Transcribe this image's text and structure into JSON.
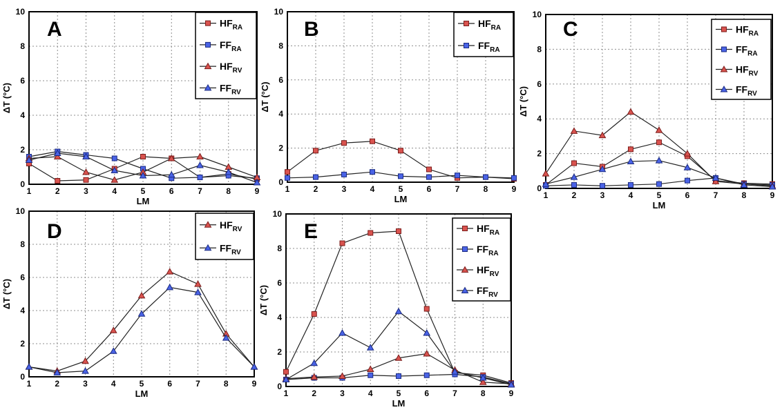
{
  "colors": {
    "red_fill": "#d9534f",
    "red_stroke": "#7a1c1a",
    "blue_fill": "#4a63e6",
    "blue_stroke": "#1a2a80",
    "grid": "#8c8c8c"
  },
  "chart_data": [
    {
      "id": "A",
      "type": "line",
      "panel_label": "A",
      "xlabel": "LM",
      "ylabel": "ΔT (°C)",
      "x": [
        1,
        2,
        3,
        4,
        5,
        6,
        7,
        8,
        9
      ],
      "xlim": [
        1,
        9
      ],
      "ylim": [
        0,
        10
      ],
      "yticks": [
        "0",
        "2",
        "4",
        "6",
        "8",
        "10"
      ],
      "xticks": [
        "1",
        "2",
        "3",
        "4",
        "5",
        "6",
        "7",
        "8",
        "9"
      ],
      "legend_position": "top-right",
      "series": [
        {
          "name": "HF",
          "sub": "RA",
          "marker": "square",
          "color": "red",
          "values": [
            1.2,
            0.2,
            0.25,
            0.9,
            1.6,
            1.5,
            0.4,
            0.6,
            0.3
          ]
        },
        {
          "name": "FF",
          "sub": "RA",
          "marker": "square",
          "color": "blue",
          "values": [
            1.6,
            1.9,
            1.7,
            1.5,
            0.9,
            0.35,
            0.4,
            0.5,
            0.35
          ]
        },
        {
          "name": "HF",
          "sub": "RV",
          "marker": "triangle",
          "color": "red",
          "values": [
            1.5,
            1.6,
            0.7,
            0.25,
            0.7,
            1.5,
            1.6,
            1.0,
            0.4
          ]
        },
        {
          "name": "FF",
          "sub": "RV",
          "marker": "triangle",
          "color": "blue",
          "values": [
            1.4,
            1.8,
            1.6,
            0.8,
            0.5,
            0.55,
            1.1,
            0.7,
            0.1
          ]
        }
      ]
    },
    {
      "id": "B",
      "type": "line",
      "panel_label": "B",
      "xlabel": "LM",
      "ylabel": "ΔT (°C)",
      "x": [
        1,
        2,
        3,
        4,
        5,
        6,
        7,
        8,
        9
      ],
      "xlim": [
        1,
        9
      ],
      "ylim": [
        0,
        10
      ],
      "yticks": [
        "0",
        "2",
        "4",
        "6",
        "8",
        "10"
      ],
      "xticks": [
        "1",
        "2",
        "3",
        "4",
        "5",
        "6",
        "7",
        "8",
        "9"
      ],
      "legend_position": "top-right",
      "series": [
        {
          "name": "HF",
          "sub": "RA",
          "marker": "square",
          "color": "red",
          "values": [
            0.6,
            1.85,
            2.3,
            2.4,
            1.85,
            0.75,
            0.25,
            0.3,
            0.2
          ]
        },
        {
          "name": "FF",
          "sub": "RA",
          "marker": "square",
          "color": "blue",
          "values": [
            0.25,
            0.3,
            0.45,
            0.6,
            0.35,
            0.3,
            0.4,
            0.3,
            0.25
          ]
        }
      ]
    },
    {
      "id": "C",
      "type": "line",
      "panel_label": "C",
      "xlabel": "LM",
      "ylabel": "ΔT (°C)",
      "x": [
        1,
        2,
        3,
        4,
        5,
        6,
        7,
        8,
        9
      ],
      "xlim": [
        1,
        9
      ],
      "ylim": [
        0,
        10
      ],
      "yticks": [
        "0",
        "2",
        "4",
        "6",
        "8",
        "10"
      ],
      "xticks": [
        "1",
        "2",
        "3",
        "4",
        "5",
        "6",
        "7",
        "8",
        "9"
      ],
      "legend_position": "top-right",
      "series": [
        {
          "name": "HF",
          "sub": "RA",
          "marker": "square",
          "color": "red",
          "values": [
            0.2,
            1.45,
            1.25,
            2.25,
            2.65,
            1.85,
            0.45,
            0.3,
            0.25
          ]
        },
        {
          "name": "FF",
          "sub": "RA",
          "marker": "square",
          "color": "blue",
          "values": [
            0.15,
            0.2,
            0.15,
            0.2,
            0.25,
            0.45,
            0.6,
            0.25,
            0.2
          ]
        },
        {
          "name": "HF",
          "sub": "RV",
          "marker": "triangle",
          "color": "red",
          "values": [
            0.85,
            3.3,
            3.05,
            4.4,
            3.35,
            2.0,
            0.4,
            0.25,
            0.15
          ]
        },
        {
          "name": "FF",
          "sub": "RV",
          "marker": "triangle",
          "color": "blue",
          "values": [
            0.25,
            0.65,
            1.1,
            1.55,
            1.6,
            1.2,
            0.6,
            0.2,
            0.1
          ]
        }
      ]
    },
    {
      "id": "D",
      "type": "line",
      "panel_label": "D",
      "xlabel": "LM",
      "ylabel": "ΔT (°C)",
      "x": [
        1,
        2,
        3,
        4,
        5,
        6,
        7,
        8,
        9
      ],
      "xlim": [
        1,
        9
      ],
      "ylim": [
        0,
        10
      ],
      "yticks": [
        "0",
        "2",
        "4",
        "6",
        "8",
        "10"
      ],
      "xticks": [
        "1",
        "2",
        "3",
        "4",
        "5",
        "6",
        "7",
        "8",
        "9"
      ],
      "legend_position": "top-right",
      "series": [
        {
          "name": "HF",
          "sub": "RV",
          "marker": "triangle",
          "color": "red",
          "values": [
            0.6,
            0.35,
            0.95,
            2.8,
            4.9,
            6.35,
            5.6,
            2.6,
            0.6
          ]
        },
        {
          "name": "FF",
          "sub": "RV",
          "marker": "triangle",
          "color": "blue",
          "values": [
            0.6,
            0.25,
            0.35,
            1.55,
            3.8,
            5.4,
            5.1,
            2.35,
            0.6
          ]
        }
      ]
    },
    {
      "id": "E",
      "type": "line",
      "panel_label": "E",
      "xlabel": "LM",
      "ylabel": "ΔT (°C)",
      "x": [
        1,
        2,
        3,
        4,
        5,
        6,
        7,
        8,
        9
      ],
      "xlim": [
        1,
        9
      ],
      "ylim": [
        0,
        10
      ],
      "yticks": [
        "0",
        "2",
        "4",
        "6",
        "8",
        "10"
      ],
      "xticks": [
        "1",
        "2",
        "3",
        "4",
        "5",
        "6",
        "7",
        "8",
        "9"
      ],
      "legend_position": "top-right",
      "series": [
        {
          "name": "HF",
          "sub": "RA",
          "marker": "square",
          "color": "red",
          "values": [
            0.85,
            4.2,
            8.3,
            8.9,
            9.0,
            4.5,
            0.8,
            0.65,
            0.2
          ]
        },
        {
          "name": "FF",
          "sub": "RA",
          "marker": "square",
          "color": "blue",
          "values": [
            0.4,
            0.5,
            0.5,
            0.65,
            0.6,
            0.65,
            0.7,
            0.55,
            0.15
          ]
        },
        {
          "name": "HF",
          "sub": "RV",
          "marker": "triangle",
          "color": "red",
          "values": [
            0.45,
            0.55,
            0.6,
            1.0,
            1.65,
            1.9,
            0.95,
            0.25,
            0.15
          ]
        },
        {
          "name": "FF",
          "sub": "RV",
          "marker": "triangle",
          "color": "blue",
          "values": [
            0.4,
            1.35,
            3.1,
            2.25,
            4.35,
            3.1,
            0.85,
            0.5,
            0.1
          ]
        }
      ]
    }
  ]
}
